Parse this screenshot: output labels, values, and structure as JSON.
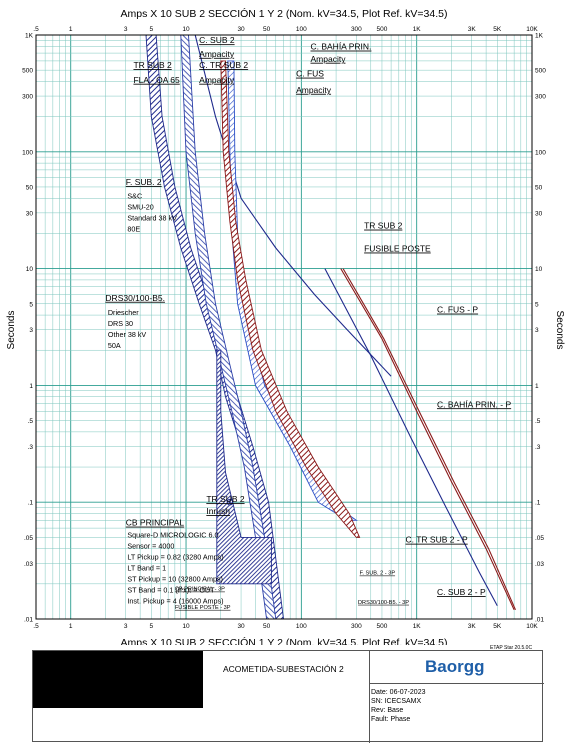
{
  "chart_data": {
    "type": "line",
    "title": "Amps  X  10   SUB 2 SECCIÓN 1 Y 2 (Nom. kV=34.5, Plot Ref. kV=34.5)",
    "xlabel": "Amps  X  10",
    "ylabel": "Seconds",
    "x_scale": "log",
    "y_scale": "log",
    "xlim": [
      0.5,
      10000
    ],
    "ylim": [
      0.01,
      1000
    ],
    "grid": true,
    "x_tick_labels": [
      ".5",
      "1",
      "3",
      "5",
      "10",
      "30",
      "50",
      "100",
      "300",
      "500",
      "1K",
      "3K",
      "5K",
      "10K"
    ],
    "x_tick_values": [
      0.5,
      1,
      3,
      5,
      10,
      30,
      50,
      100,
      300,
      500,
      1000,
      3000,
      5000,
      10000
    ],
    "y_tick_labels": [
      ".01",
      ".03",
      ".05",
      ".1",
      ".3",
      ".5",
      "1",
      "3",
      "5",
      "10",
      "30",
      "50",
      "100",
      "300",
      "500",
      "1K"
    ],
    "y_tick_values": [
      0.01,
      0.03,
      0.05,
      0.1,
      0.3,
      0.5,
      1,
      3,
      5,
      10,
      30,
      50,
      100,
      300,
      500,
      1000
    ],
    "series": [
      {
        "name": "TR SUB 2",
        "color": "#1f2a8c",
        "style": "line",
        "x": [
          12,
          18,
          30,
          60,
          130,
          250,
          600
        ],
        "y": [
          1000,
          200,
          40,
          15,
          6,
          3,
          1.2
        ]
      },
      {
        "name": "FUSIBLE POSTE",
        "color": "#2b4fc7",
        "style": "band",
        "x_min": [
          23,
          24,
          25,
          28,
          40,
          80,
          140,
          250
        ],
        "x_max": [
          26,
          26.5,
          28,
          32,
          48,
          100,
          180,
          300
        ],
        "y": [
          600,
          100,
          20,
          5,
          1,
          0.3,
          0.1,
          0.07
        ]
      },
      {
        "name": "F. SUB. 2",
        "color": "#1f2a8c",
        "style": "band",
        "x_min": [
          4.5,
          5,
          6.5,
          9,
          13,
          18,
          22,
          30,
          40,
          55
        ],
        "x_max": [
          5.5,
          6.2,
          8,
          11,
          16,
          22,
          28,
          38,
          52,
          70
        ],
        "y": [
          1000,
          200,
          50,
          15,
          5,
          2,
          0.8,
          0.3,
          0.1,
          0.01
        ]
      },
      {
        "name": "DRS30/100-B5.",
        "color": "#2b3fa8",
        "style": "band",
        "x_min": [
          9,
          10,
          12,
          15,
          20,
          25,
          32,
          40,
          50
        ],
        "x_max": [
          10.5,
          12,
          14.5,
          18,
          24,
          30,
          38,
          48,
          60
        ],
        "y": [
          1000,
          100,
          20,
          5,
          1.5,
          0.6,
          0.2,
          0.05,
          0.01
        ]
      },
      {
        "name": "C. TR SUB 2",
        "color": "#8b1a1a",
        "style": "band",
        "x_min": [
          20,
          21,
          24,
          28,
          38,
          60,
          110,
          200,
          300
        ],
        "x_max": [
          22,
          23.5,
          27,
          33,
          45,
          75,
          140,
          260,
          320
        ],
        "y": [
          600,
          100,
          25,
          8,
          2,
          0.6,
          0.2,
          0.08,
          0.05
        ]
      },
      {
        "name": "C. FUS - P",
        "color": "#8b1a1a",
        "style": "line",
        "x": [
          220,
          500,
          1000,
          2000,
          4000,
          7000
        ],
        "y": [
          10,
          2.5,
          0.6,
          0.15,
          0.04,
          0.012
        ]
      },
      {
        "name": "C. BAHÍA PRIN. - P",
        "color": "#8b1a1a",
        "style": "line",
        "x": [
          230,
          520,
          1050,
          2100,
          4200,
          7200
        ],
        "y": [
          10,
          2.5,
          0.6,
          0.15,
          0.04,
          0.012
        ]
      },
      {
        "name": "C. SUB 2 - P",
        "color": "#1f2a8c",
        "style": "line",
        "x": [
          160,
          400,
          900,
          1800,
          3500,
          5000
        ],
        "y": [
          10,
          1.8,
          0.35,
          0.09,
          0.025,
          0.013
        ]
      },
      {
        "name": "CB PRINCIPAL",
        "color": "#1f2a8c",
        "style": "band",
        "x_min": [
          18.5,
          18.5,
          18.5,
          18.5,
          18.5,
          18.5
        ],
        "x_max": [
          20,
          20,
          22,
          30,
          55,
          55
        ],
        "y": [
          2,
          0.6,
          0.18,
          0.05,
          0.05,
          0.02
        ]
      }
    ],
    "annotations": [
      {
        "text": "C. SUB 2",
        "x": 13,
        "y": 850
      },
      {
        "text": "Ampacity",
        "x": 13,
        "y": 650
      },
      {
        "text": "TR SUB 2",
        "x": 3.5,
        "y": 520
      },
      {
        "text": "FLA - OA 65",
        "x": 3.5,
        "y": 390
      },
      {
        "text": "C. TR SUB 2",
        "x": 13,
        "y": 520
      },
      {
        "text": "Ampacity",
        "x": 13,
        "y": 390
      },
      {
        "text": "C. BAHÍA PRIN.",
        "x": 120,
        "y": 750
      },
      {
        "text": "Ampacity",
        "x": 120,
        "y": 590
      },
      {
        "text": "C. FUS",
        "x": 90,
        "y": 440
      },
      {
        "text": "Ampacity",
        "x": 90,
        "y": 320
      },
      {
        "text": "F. SUB. 2",
        "x": 3,
        "y": 52
      },
      {
        "text": "TR SUB 2",
        "x": 350,
        "y": 22
      },
      {
        "text": "FUSIBLE POSTE",
        "x": 350,
        "y": 14
      },
      {
        "text": "DRS30/100-B5.",
        "x": 2,
        "y": 5.3
      },
      {
        "text": "C. FUS - P",
        "x": 1500,
        "y": 4.2
      },
      {
        "text": "C. BAHÍA PRIN. - P",
        "x": 1500,
        "y": 0.65
      },
      {
        "text": "TR SUB 2",
        "x": 15,
        "y": 0.1
      },
      {
        "text": "Inrush",
        "x": 15,
        "y": 0.079
      },
      {
        "text": "CB PRINCIPAL",
        "x": 3,
        "y": 0.063
      },
      {
        "text": "C. TR SUB 2 - P",
        "x": 800,
        "y": 0.045
      },
      {
        "text": "C. SUB 2 - P",
        "x": 1500,
        "y": 0.016
      }
    ],
    "device_details": {
      "f_sub_2": [
        "S&C",
        "SMU-20",
        "Standard  38 kV",
        "80E"
      ],
      "drs": [
        "Driescher",
        "DRS 30",
        "Other  38 kV",
        "50A"
      ],
      "cb_principal": [
        "Square-D  MICROLOGIC 6.0",
        "Sensor = 4000",
        "LT Pickup = 0.82 (3280 Amps)",
        "LT Band = 1",
        "ST Pickup = 10 (32800 Amps)",
        "ST Band = 0.1  (I^x)t = OUT",
        "Inst. Pickup = 4 (16000 Amps)"
      ]
    },
    "small_labels": [
      "CB PRINCIPAL - 3P",
      "FUSIBLE POSTE - 3P",
      "F. SUB. 2 - 3P",
      "DRS30/100-B5. - 3P"
    ]
  },
  "title_block": {
    "project": "ACOMETIDA-SUBESTACIÓN 2",
    "logo": "Baorgg",
    "date": "Date:  06-07-2023",
    "sn": "SN:    ICECSAMX",
    "rev": "Rev:   Base",
    "fault": "Fault:  Phase",
    "version": "ETAP Star 20.5.0C"
  }
}
